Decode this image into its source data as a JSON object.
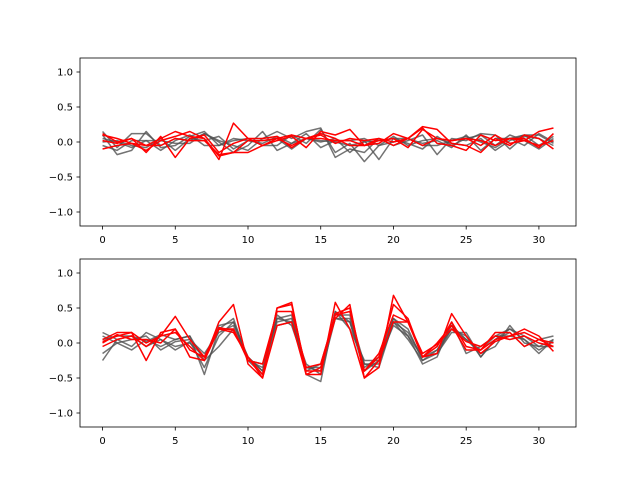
{
  "colors": {
    "gray_series": "#505050",
    "red_series": "#ff0000"
  },
  "chart_data": [
    {
      "type": "line",
      "title": "",
      "xlabel": "",
      "ylabel": "",
      "xlim": [
        -1.55,
        32.55
      ],
      "ylim": [
        -1.2,
        1.2
      ],
      "xticks": [
        0,
        5,
        10,
        15,
        20,
        25,
        30
      ],
      "yticks": [
        -1.0,
        -0.5,
        0.0,
        0.5,
        1.0
      ],
      "ytick_labels": [
        "−1.0",
        "−0.5",
        "0.0",
        "0.5",
        "1.0"
      ],
      "grid": false,
      "x": [
        0,
        1,
        2,
        3,
        4,
        5,
        6,
        7,
        8,
        9,
        10,
        11,
        12,
        13,
        14,
        15,
        16,
        17,
        18,
        19,
        20,
        21,
        22,
        23,
        24,
        25,
        26,
        27,
        28,
        29,
        30,
        31
      ],
      "series": [
        {
          "group": "gray",
          "values": [
            0.15,
            -0.08,
            0.12,
            0.12,
            -0.05,
            0.05,
            0.02,
            0.12,
            0.02,
            -0.05,
            -0.12,
            0.05,
            0.15,
            0.05,
            0.15,
            0.2,
            -0.22,
            -0.1,
            -0.15,
            0.05,
            -0.05,
            0.02,
            0.1,
            -0.18,
            0.05,
            0.02,
            0.12,
            0.1,
            -0.1,
            0.08,
            0.05,
            -0.05
          ]
        },
        {
          "group": "gray",
          "values": [
            0.1,
            -0.18,
            -0.12,
            0.15,
            -0.08,
            -0.05,
            0.08,
            0.15,
            -0.05,
            0.02,
            0.05,
            -0.05,
            -0.05,
            0.1,
            -0.02,
            0.18,
            -0.15,
            -0.02,
            -0.28,
            -0.05,
            0.08,
            -0.05,
            0.02,
            0.05,
            -0.02,
            -0.05,
            0.05,
            -0.12,
            0.02,
            0.1,
            -0.05,
            0.08
          ]
        },
        {
          "group": "gray",
          "values": [
            0.0,
            0.02,
            -0.05,
            -0.08,
            0.05,
            -0.12,
            0.05,
            0.02,
            0.08,
            -0.1,
            0.02,
            0.02,
            0.05,
            -0.1,
            0.05,
            0.0,
            0.05,
            -0.15,
            0.02,
            -0.25,
            0.05,
            0.05,
            -0.02,
            0.02,
            -0.08,
            0.1,
            -0.12,
            0.05,
            0.05,
            -0.05,
            0.12,
            0.0
          ]
        },
        {
          "group": "gray",
          "values": [
            -0.05,
            -0.12,
            0.02,
            0.02,
            0.02,
            -0.02,
            -0.02,
            0.12,
            0.0,
            -0.15,
            -0.05,
            0.15,
            -0.12,
            -0.02,
            0.05,
            0.02,
            0.0,
            -0.05,
            0.0,
            0.02,
            0.05,
            -0.02,
            -0.1,
            0.08,
            -0.05,
            0.05,
            0.1,
            -0.05,
            0.1,
            0.02,
            -0.1,
            0.05
          ]
        },
        {
          "group": "gray",
          "values": [
            0.05,
            0.0,
            -0.08,
            0.02,
            -0.12,
            0.02,
            0.1,
            -0.05,
            -0.05,
            0.05,
            0.02,
            -0.02,
            0.08,
            -0.02,
            0.12,
            -0.08,
            0.02,
            0.02,
            0.05,
            -0.05,
            0.0,
            0.05,
            -0.05,
            -0.05,
            0.02,
            0.08,
            0.0,
            -0.08,
            0.05,
            0.1,
            0.1,
            -0.02
          ]
        },
        {
          "group": "red",
          "values": [
            0.1,
            0.05,
            -0.02,
            -0.05,
            0.05,
            0.15,
            0.08,
            0.05,
            -0.2,
            -0.15,
            -0.15,
            -0.05,
            0.02,
            0.08,
            -0.08,
            0.15,
            0.1,
            0.18,
            -0.05,
            -0.02,
            0.12,
            0.05,
            0.22,
            0.18,
            -0.02,
            -0.05,
            -0.15,
            0.05,
            -0.05,
            0.1,
            0.05,
            -0.1
          ]
        },
        {
          "group": "red",
          "values": [
            -0.1,
            -0.05,
            -0.02,
            -0.12,
            0.02,
            0.08,
            0.15,
            0.05,
            -0.25,
            0.27,
            0.05,
            -0.05,
            0.05,
            0.1,
            0.05,
            0.1,
            -0.02,
            0.05,
            0.02,
            0.05,
            -0.05,
            0.05,
            0.2,
            -0.02,
            -0.05,
            -0.12,
            0.1,
            0.02,
            0.05,
            0.05,
            -0.08,
            0.12
          ]
        },
        {
          "group": "red",
          "values": [
            0.12,
            0.0,
            0.05,
            -0.15,
            0.08,
            -0.22,
            0.05,
            0.1,
            -0.15,
            -0.02,
            0.05,
            0.05,
            0.08,
            -0.08,
            0.05,
            0.12,
            0.05,
            -0.05,
            -0.05,
            0.02,
            0.05,
            -0.08,
            0.18,
            0.05,
            0.02,
            0.05,
            -0.05,
            0.1,
            -0.02,
            0.02,
            0.15,
            0.2
          ]
        },
        {
          "group": "red",
          "values": [
            0.02,
            -0.02,
            0.05,
            -0.05,
            -0.05,
            0.05,
            0.02,
            0.02,
            -0.18,
            -0.15,
            0.02,
            0.02,
            0.05,
            -0.05,
            0.05,
            0.05,
            0.02,
            0.02,
            -0.05,
            0.05,
            0.0,
            0.05,
            -0.05,
            0.05,
            0.02,
            0.05,
            0.02,
            -0.05,
            0.05,
            0.02,
            -0.05,
            0.02
          ]
        }
      ]
    },
    {
      "type": "line",
      "title": "",
      "xlabel": "",
      "ylabel": "",
      "xlim": [
        -1.55,
        32.55
      ],
      "ylim": [
        -1.2,
        1.2
      ],
      "xticks": [
        0,
        5,
        10,
        15,
        20,
        25,
        30
      ],
      "yticks": [
        -1.0,
        -0.5,
        0.0,
        0.5,
        1.0
      ],
      "ytick_labels": [
        "−1.0",
        "−0.5",
        "0.0",
        "0.5",
        "1.0"
      ],
      "grid": false,
      "x": [
        0,
        1,
        2,
        3,
        4,
        5,
        6,
        7,
        8,
        9,
        10,
        11,
        12,
        13,
        14,
        15,
        16,
        17,
        18,
        19,
        20,
        21,
        22,
        23,
        24,
        25,
        26,
        27,
        28,
        29,
        30,
        31
      ],
      "series": [
        {
          "group": "gray",
          "values": [
            0.15,
            0.05,
            0.1,
            0.02,
            0.12,
            0.05,
            0.1,
            -0.45,
            0.2,
            0.35,
            -0.25,
            -0.35,
            0.35,
            0.4,
            -0.45,
            -0.55,
            0.45,
            0.2,
            -0.25,
            -0.25,
            0.25,
            0.1,
            -0.3,
            -0.2,
            0.3,
            -0.15,
            -0.05,
            0.1,
            0.2,
            0.05,
            -0.15,
            0.05
          ]
        },
        {
          "group": "gray",
          "values": [
            -0.25,
            0.05,
            -0.05,
            0.15,
            0.05,
            -0.1,
            0.02,
            -0.35,
            0.1,
            0.3,
            -0.2,
            -0.4,
            0.25,
            0.3,
            -0.3,
            -0.45,
            0.35,
            0.35,
            -0.35,
            -0.2,
            0.35,
            0.2,
            -0.25,
            -0.15,
            0.2,
            0.1,
            -0.2,
            0.05,
            0.15,
            -0.05,
            0.05,
            0.1
          ]
        },
        {
          "group": "gray",
          "values": [
            -0.15,
            0.0,
            -0.1,
            0.05,
            -0.05,
            0.05,
            0.1,
            -0.25,
            -0.05,
            0.2,
            -0.25,
            -0.3,
            0.3,
            0.35,
            -0.4,
            -0.3,
            0.4,
            0.4,
            -0.3,
            -0.35,
            0.3,
            0.15,
            -0.2,
            -0.1,
            0.25,
            0.05,
            -0.15,
            -0.05,
            0.25,
            0.0,
            -0.05,
            -0.05
          ]
        },
        {
          "group": "gray",
          "values": [
            0.05,
            0.1,
            0.1,
            -0.05,
            0.05,
            -0.05,
            0.0,
            -0.2,
            0.25,
            0.3,
            -0.25,
            -0.45,
            0.4,
            0.25,
            -0.35,
            -0.35,
            0.35,
            0.3,
            -0.4,
            -0.25,
            0.35,
            0.1,
            -0.2,
            -0.15,
            0.15,
            0.15,
            -0.2,
            0.05,
            0.2,
            0.1,
            -0.05,
            0.05
          ]
        },
        {
          "group": "gray",
          "values": [
            0.1,
            0.0,
            0.05,
            0.1,
            -0.1,
            0.02,
            0.05,
            -0.15,
            0.15,
            0.25,
            -0.2,
            -0.4,
            0.35,
            0.3,
            -0.35,
            -0.4,
            0.45,
            0.3,
            -0.3,
            -0.3,
            0.3,
            0.05,
            -0.25,
            -0.1,
            0.2,
            0.05,
            -0.1,
            0.1,
            0.1,
            0.05,
            -0.1,
            0.02
          ]
        },
        {
          "group": "red",
          "values": [
            0.05,
            0.15,
            0.15,
            -0.25,
            0.15,
            0.2,
            -0.2,
            -0.25,
            0.3,
            0.55,
            -0.3,
            -0.5,
            0.5,
            0.58,
            -0.45,
            -0.45,
            0.58,
            0.2,
            -0.5,
            -0.35,
            0.68,
            0.3,
            -0.2,
            -0.15,
            0.42,
            0.1,
            -0.15,
            0.02,
            0.1,
            0.2,
            0.1,
            -0.12
          ]
        },
        {
          "group": "red",
          "values": [
            0.02,
            0.1,
            0.15,
            0.0,
            0.1,
            0.38,
            0.05,
            -0.2,
            0.2,
            0.15,
            -0.2,
            -0.45,
            0.5,
            0.55,
            -0.4,
            -0.4,
            0.42,
            0.5,
            -0.4,
            -0.2,
            0.55,
            0.35,
            -0.2,
            -0.05,
            0.3,
            -0.05,
            -0.1,
            0.15,
            0.15,
            -0.05,
            0.05,
            -0.05
          ]
        },
        {
          "group": "red",
          "values": [
            -0.05,
            0.05,
            0.1,
            -0.05,
            0.1,
            0.15,
            -0.05,
            -0.25,
            0.2,
            0.2,
            -0.25,
            -0.3,
            0.45,
            0.45,
            -0.35,
            -0.3,
            0.4,
            0.45,
            -0.4,
            -0.15,
            0.4,
            0.3,
            -0.2,
            0.0,
            0.25,
            -0.1,
            -0.1,
            0.05,
            0.1,
            0.15,
            0.05,
            0.0
          ]
        },
        {
          "group": "red",
          "values": [
            0.0,
            0.12,
            0.05,
            0.05,
            0.0,
            0.2,
            -0.1,
            -0.2,
            0.22,
            0.18,
            -0.2,
            -0.5,
            0.25,
            0.3,
            -0.45,
            -0.35,
            0.35,
            0.55,
            -0.5,
            -0.25,
            0.3,
            0.3,
            -0.15,
            -0.02,
            0.2,
            0.02,
            -0.05,
            0.1,
            0.05,
            0.1,
            0.0,
            -0.05
          ]
        }
      ]
    }
  ]
}
